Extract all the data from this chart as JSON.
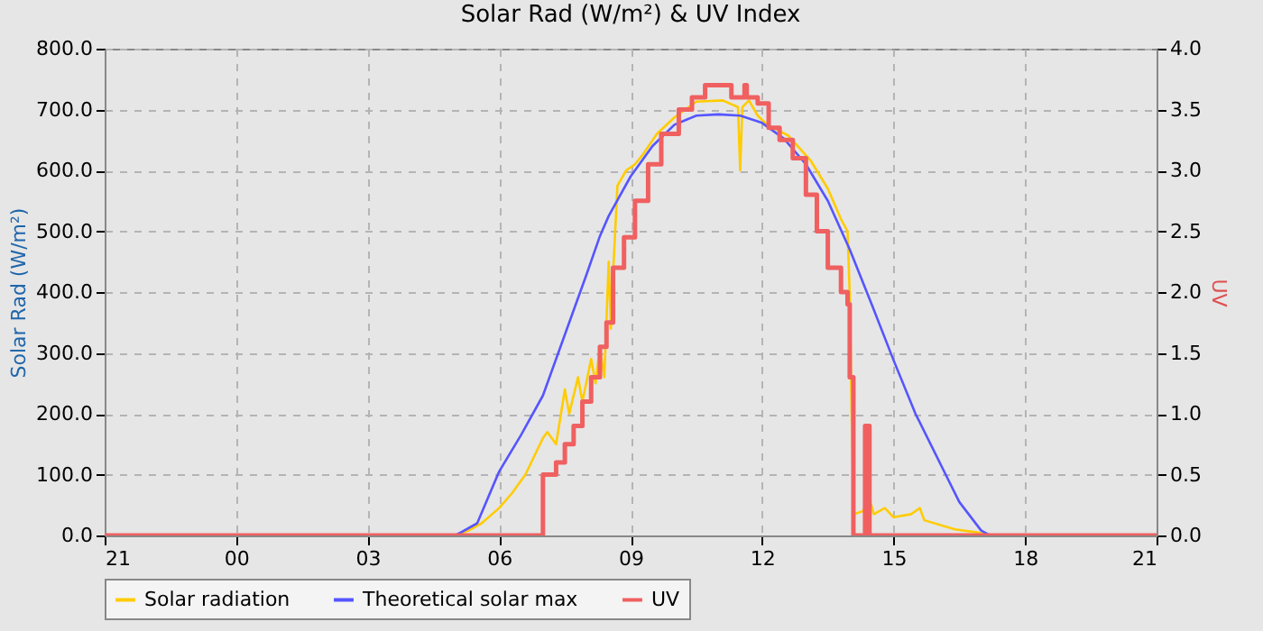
{
  "chart_data": {
    "type": "line",
    "title": "Solar Rad (W/m²) &  UV Index",
    "ylabel": "Solar Rad (W/m²)",
    "y2label": "UV",
    "xlim": [
      "--01-01T21:00",
      "--01-02T21:00"
    ],
    "xticks": [
      {
        "value": "--01-01T21:00",
        "label": "21"
      },
      {
        "value": "--01-02T00:00",
        "label": "00"
      },
      {
        "value": "--01-02T03:00",
        "label": "03"
      },
      {
        "value": "--01-02T06:00",
        "label": "06"
      },
      {
        "value": "--01-02T09:00",
        "label": "09"
      },
      {
        "value": "--01-02T12:00",
        "label": "12"
      },
      {
        "value": "--01-02T15:00",
        "label": "15"
      },
      {
        "value": "--01-02T18:00",
        "label": "18"
      },
      {
        "value": "--01-02T21:00",
        "label": "21"
      }
    ],
    "ylim": [
      0,
      800
    ],
    "yticks": [
      {
        "value": 0,
        "label": "0.0"
      },
      {
        "value": 100,
        "label": "100.0"
      },
      {
        "value": 200,
        "label": "200.0"
      },
      {
        "value": 300,
        "label": "300.0"
      },
      {
        "value": 400,
        "label": "400.0"
      },
      {
        "value": 500,
        "label": "500.0"
      },
      {
        "value": 600,
        "label": "600.0"
      },
      {
        "value": 700,
        "label": "700.0"
      },
      {
        "value": 800,
        "label": "800.0"
      }
    ],
    "y2lim": [
      0,
      4
    ],
    "y2ticks": [
      {
        "value": 0,
        "label": "0.0"
      },
      0.5,
      {
        "value": 1,
        "label": "1.0"
      },
      1.5,
      {
        "value": 2,
        "label": "2.0"
      },
      2.5,
      {
        "value": 3,
        "label": "3.0"
      },
      3.5,
      {
        "value": 4,
        "label": "4.0"
      }
    ],
    "grid": true,
    "legend": "bottom",
    "series": [
      {
        "name": "Solar radiation",
        "color": "#ffcc00",
        "x": [
          "--01-01T21:00",
          "--01-02T05:00",
          "--01-02T05:18",
          "--01-02T05:36",
          "--01-02T06:00",
          "--01-02T06:18",
          "--01-02T06:36",
          "--01-02T06:48",
          "--01-02T07:00",
          "--01-02T07:06",
          "--01-02T07:18",
          "--01-02T07:30",
          "--01-02T07:36",
          "--01-02T07:48",
          "--01-02T07:54",
          "--01-02T08:06",
          "--01-02T08:12",
          "--01-02T08:18",
          "--01-02T08:24",
          "--01-02T08:30",
          "--01-02T08:33",
          "--01-02T08:36",
          "--01-02T08:42",
          "--01-02T08:54",
          "--01-02T09:06",
          "--01-02T09:18",
          "--01-02T09:36",
          "--01-02T10:00",
          "--01-02T10:30",
          "--01-02T11:06",
          "--01-02T11:27",
          "--01-02T11:30",
          "--01-02T11:33",
          "--01-02T11:42",
          "--01-02T11:54",
          "--01-02T12:06",
          "--01-02T12:36",
          "--01-02T13:06",
          "--01-02T13:30",
          "--01-02T13:48",
          "--01-02T13:57",
          "--01-02T14:00",
          "--01-02T14:03",
          "--01-02T14:06",
          "--01-02T14:18",
          "--01-02T14:27",
          "--01-02T14:33",
          "--01-02T14:48",
          "--01-02T15:00",
          "--01-02T15:24",
          "--01-02T15:36",
          "--01-02T15:42",
          "--01-02T16:24",
          "--01-02T16:54",
          "--01-02T17:12",
          "--01-02T21:00"
        ],
        "values": [
          0,
          0,
          8,
          20,
          45,
          70,
          100,
          130,
          160,
          170,
          150,
          240,
          200,
          260,
          220,
          290,
          250,
          310,
          260,
          450,
          340,
          430,
          575,
          600,
          610,
          628,
          660,
          687,
          713,
          715,
          704,
          600,
          704,
          715,
          690,
          676,
          657,
          617,
          570,
          520,
          500,
          395,
          170,
          35,
          40,
          60,
          35,
          45,
          30,
          35,
          45,
          25,
          10,
          5,
          0,
          0
        ]
      },
      {
        "name": "Theoretical solar max",
        "color": "#5555ff",
        "x": [
          "--01-01T21:00",
          "--01-02T05:00",
          "--01-02T05:30",
          "--01-02T06:00",
          "--01-02T06:30",
          "--01-02T07:00",
          "--01-02T07:30",
          "--01-02T08:00",
          "--01-02T08:18",
          "--01-02T08:30",
          "--01-02T09:00",
          "--01-02T09:30",
          "--01-02T10:00",
          "--01-02T10:30",
          "--01-02T11:00",
          "--01-02T11:30",
          "--01-02T12:00",
          "--01-02T12:30",
          "--01-02T13:00",
          "--01-02T13:30",
          "--01-02T14:00",
          "--01-02T14:30",
          "--01-02T15:00",
          "--01-02T15:30",
          "--01-02T16:06",
          "--01-02T16:30",
          "--01-02T17:00",
          "--01-02T17:12",
          "--01-02T21:00"
        ],
        "values": [
          0,
          0,
          20,
          105,
          165,
          230,
          330,
          430,
          492,
          525,
          590,
          640,
          675,
          690,
          692,
          690,
          678,
          652,
          610,
          550,
          470,
          380,
          288,
          200,
          113,
          55,
          8,
          0,
          0
        ]
      },
      {
        "name": "UV",
        "color": "#f06060",
        "type": "step",
        "axis": "y2",
        "x": [
          "--01-01T21:00",
          "--01-02T07:00",
          "--01-02T07:18",
          "--01-02T07:30",
          "--01-02T07:42",
          "--01-02T07:54",
          "--01-02T08:06",
          "--01-02T08:18",
          "--01-02T08:27",
          "--01-02T08:36",
          "--01-02T08:51",
          "--01-02T09:06",
          "--01-02T09:24",
          "--01-02T09:42",
          "--01-02T10:06",
          "--01-02T10:24",
          "--01-02T10:42",
          "--01-02T11:18",
          "--01-02T11:36",
          "--01-02T11:39",
          "--01-02T11:54",
          "--01-02T12:09",
          "--01-02T12:24",
          "--01-02T12:42",
          "--01-02T13:00",
          "--01-02T13:15",
          "--01-02T13:30",
          "--01-02T13:48",
          "--01-02T13:57",
          "--01-02T14:00",
          "--01-02T14:05",
          "--01-02T14:21",
          "--01-02T14:27",
          "--01-02T21:00"
        ],
        "values": [
          0,
          0.5,
          0.6,
          0.75,
          0.9,
          1.1,
          1.3,
          1.55,
          1.75,
          2.2,
          2.45,
          2.75,
          3.05,
          3.3,
          3.5,
          3.6,
          3.7,
          3.6,
          3.7,
          3.6,
          3.55,
          3.35,
          3.25,
          3.1,
          2.8,
          2.5,
          2.2,
          2.0,
          1.9,
          1.3,
          0,
          0.9,
          0,
          0
        ]
      }
    ]
  }
}
